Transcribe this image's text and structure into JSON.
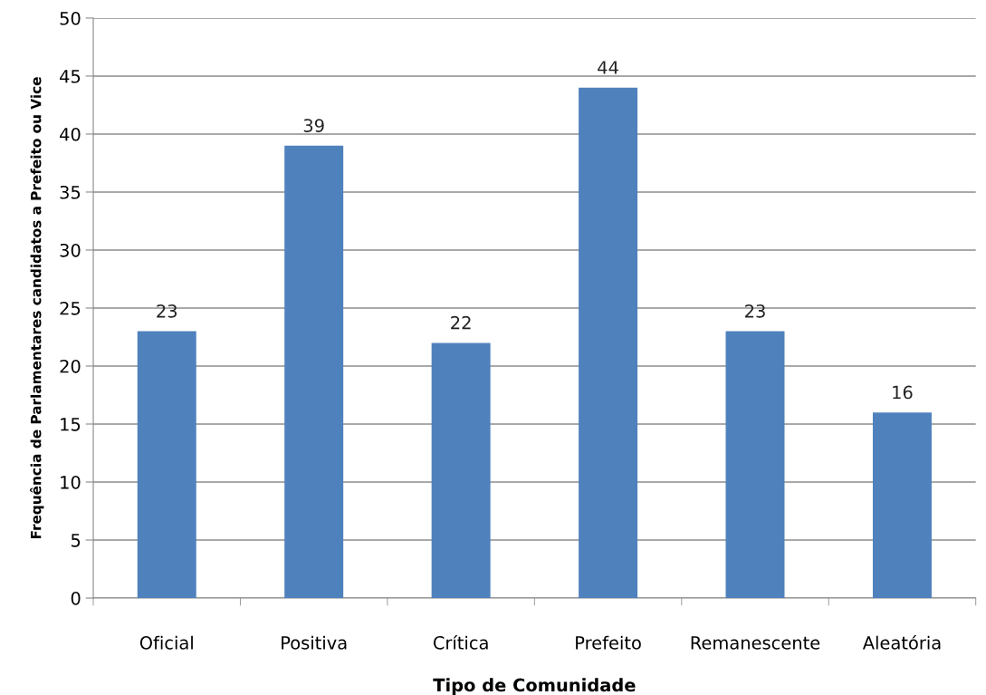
{
  "chart_data": {
    "type": "bar",
    "xlabel": "Tipo de Comunidade",
    "ylabel": "Frequência de Parlamentares candidatos a Prefeito ou Vice",
    "categories": [
      "Oficial",
      "Positiva",
      "Crítica",
      "Prefeito",
      "Remanescente",
      "Aleatória"
    ],
    "values": [
      23,
      39,
      22,
      44,
      23,
      16
    ],
    "color": "#4f81bd",
    "data_labels": true,
    "ylim": [
      0,
      50
    ],
    "yticks": [
      0,
      5,
      10,
      15,
      20,
      25,
      30,
      35,
      40,
      45,
      50
    ],
    "grid": "y",
    "legend": false
  }
}
